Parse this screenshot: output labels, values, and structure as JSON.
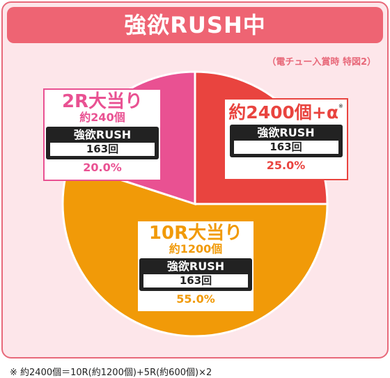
{
  "banner": {
    "title": "強欲RUSH中"
  },
  "subnote": "（電チュー入賞時 特図2）",
  "footnote": "※ 約2400個＝10R(約1200個)+5R(約600個)×2",
  "colors": {
    "big": "#e9443f",
    "twoR": "#e95192",
    "tenR": "#f19a08",
    "banner": "#ee6473"
  },
  "chart_data": {
    "type": "pie",
    "slices": [
      {
        "label": "約2400個+α",
        "value": 25.0,
        "color": "#e9443f"
      },
      {
        "label": "10R大当り",
        "value": 55.0,
        "color": "#f19a08"
      },
      {
        "label": "2R大当り",
        "value": 20.0,
        "color": "#e95192"
      }
    ],
    "labels": {
      "big": {
        "title": "約2400個+α",
        "mark": "※",
        "rush": "強欲RUSH",
        "games": "163回",
        "pct": "25.0%"
      },
      "twoR": {
        "title": "2R大当り",
        "sub": "約240個",
        "rush": "強欲RUSH",
        "games": "163回",
        "pct": "20.0%"
      },
      "tenR": {
        "title": "10R大当り",
        "sub": "約1200個",
        "rush": "強欲RUSH",
        "games": "163回",
        "pct": "55.0%"
      }
    }
  }
}
